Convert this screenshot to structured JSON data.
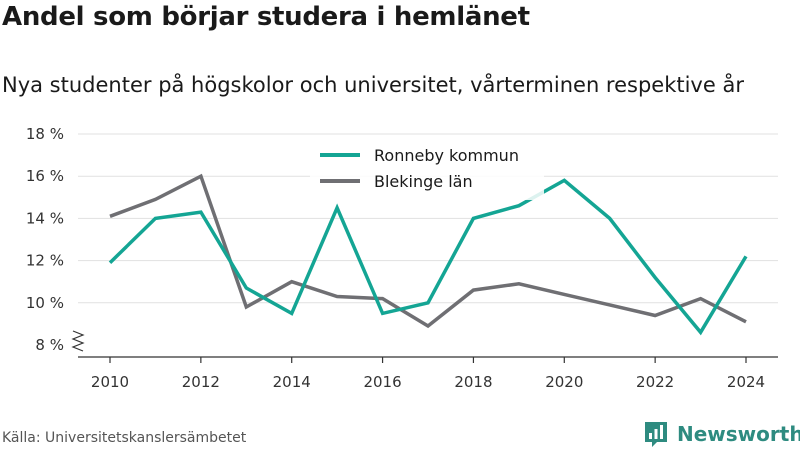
{
  "title": "Andel som börjar studera i hemlänet",
  "subtitle": "Nya studenter på högskolor och universitet, vårterminen respektive år",
  "source": "Källa: Universitetskanslersämbetet",
  "brand": {
    "name": "Newsworthy",
    "icon": "newsworthy-logo-icon",
    "color": "#2e8b80"
  },
  "chart_data": {
    "type": "line",
    "title": "Andel som börjar studera i hemlänet",
    "xlabel": "",
    "ylabel": "",
    "x": [
      2010,
      2011,
      2012,
      2013,
      2014,
      2015,
      2016,
      2017,
      2018,
      2019,
      2020,
      2021,
      2022,
      2023,
      2024
    ],
    "x_ticks": [
      "2010",
      "2012",
      "2014",
      "2016",
      "2018",
      "2020",
      "2022",
      "2024"
    ],
    "y_ticks": [
      "8 %",
      "10 %",
      "12 %",
      "14 %",
      "16 %",
      "18 %"
    ],
    "ylim": [
      8,
      18
    ],
    "y_axis_break": true,
    "grid": true,
    "legend_position": "top-center",
    "series": [
      {
        "name": "Ronneby kommun",
        "color": "#14a594",
        "values": [
          11.9,
          14.0,
          14.3,
          10.7,
          9.5,
          14.5,
          9.5,
          10.0,
          14.0,
          14.6,
          15.8,
          14.0,
          11.2,
          8.6,
          12.2
        ]
      },
      {
        "name": "Blekinge län",
        "color": "#6f6f73",
        "values": [
          14.1,
          14.9,
          16.0,
          9.8,
          11.0,
          10.3,
          10.2,
          8.9,
          10.6,
          10.9,
          10.4,
          9.9,
          9.4,
          10.2,
          9.1
        ]
      }
    ]
  }
}
